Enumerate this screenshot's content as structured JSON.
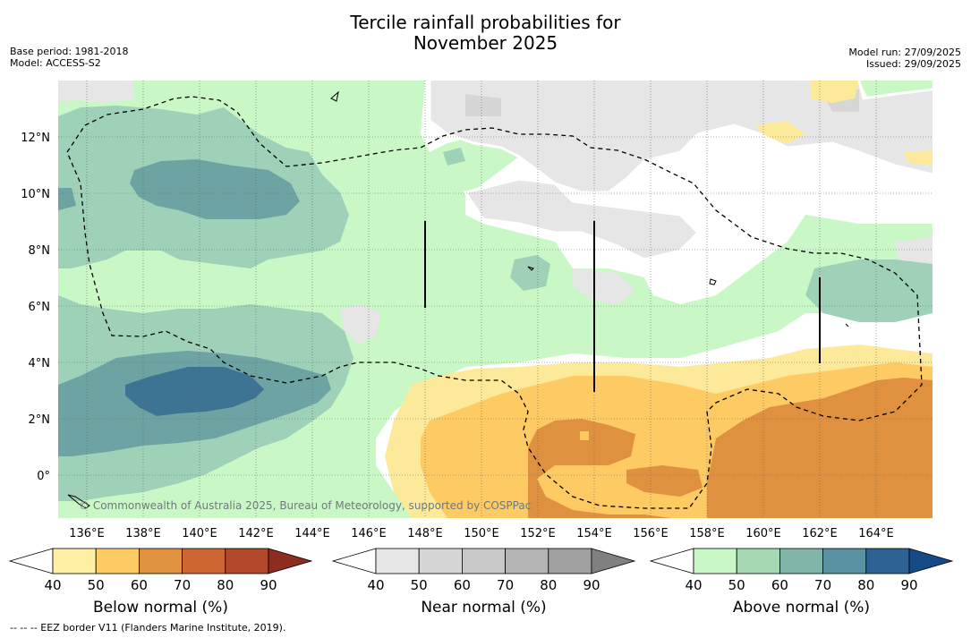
{
  "title_line1": "Tercile rainfall probabilities for",
  "title_line2": "November 2025",
  "base_period": "Base period: 1981-2018",
  "model": "Model: ACCESS-S2",
  "model_run": "Model run: 27/09/2025",
  "issued": "Issued: 29/09/2025",
  "watermark": "© Commonwealth of Australia 2025, Bureau of Meteorology, supported by COSPPac",
  "footnote": "--  --  -- EEZ border V11 (Flanders Marine Institute, 2019).",
  "map": {
    "lon_labels": [
      "136°E",
      "138°E",
      "140°E",
      "142°E",
      "144°E",
      "146°E",
      "148°E",
      "150°E",
      "152°E",
      "154°E",
      "156°E",
      "158°E",
      "160°E",
      "162°E",
      "164°E"
    ],
    "lat_labels": [
      "12°N",
      "10°N",
      "8°N",
      "6°N",
      "4°N",
      "2°N",
      "0°"
    ],
    "colors": {
      "white": "#ffffff",
      "near40": "#e6e6e6",
      "near50": "#d6d6d6",
      "above40": "#c9f8c6",
      "above50": "#9ed1b8",
      "above60": "#6ea3a3",
      "above70": "#3d7393",
      "below40": "#fde99a",
      "below50": "#fdca63",
      "below60": "#e0913f"
    }
  },
  "colorbars": [
    {
      "label": "Below normal (%)",
      "ticks": [
        "40",
        "50",
        "60",
        "70",
        "80",
        "90"
      ],
      "colors": [
        "#fff0a6",
        "#fdca63",
        "#e0913f",
        "#cd6534",
        "#b2472a",
        "#8c2d20"
      ]
    },
    {
      "label": "Near normal (%)",
      "ticks": [
        "40",
        "50",
        "60",
        "70",
        "80",
        "90"
      ],
      "colors": [
        "#e6e6e6",
        "#d6d6d6",
        "#c8c8c8",
        "#b4b4b4",
        "#a0a0a0",
        "#808080"
      ]
    },
    {
      "label": "Above normal (%)",
      "ticks": [
        "40",
        "50",
        "60",
        "70",
        "80",
        "90"
      ],
      "colors": [
        "#c9f8c6",
        "#a6d8b4",
        "#82b5a9",
        "#5a92a2",
        "#2e6294",
        "#164a86"
      ]
    }
  ]
}
